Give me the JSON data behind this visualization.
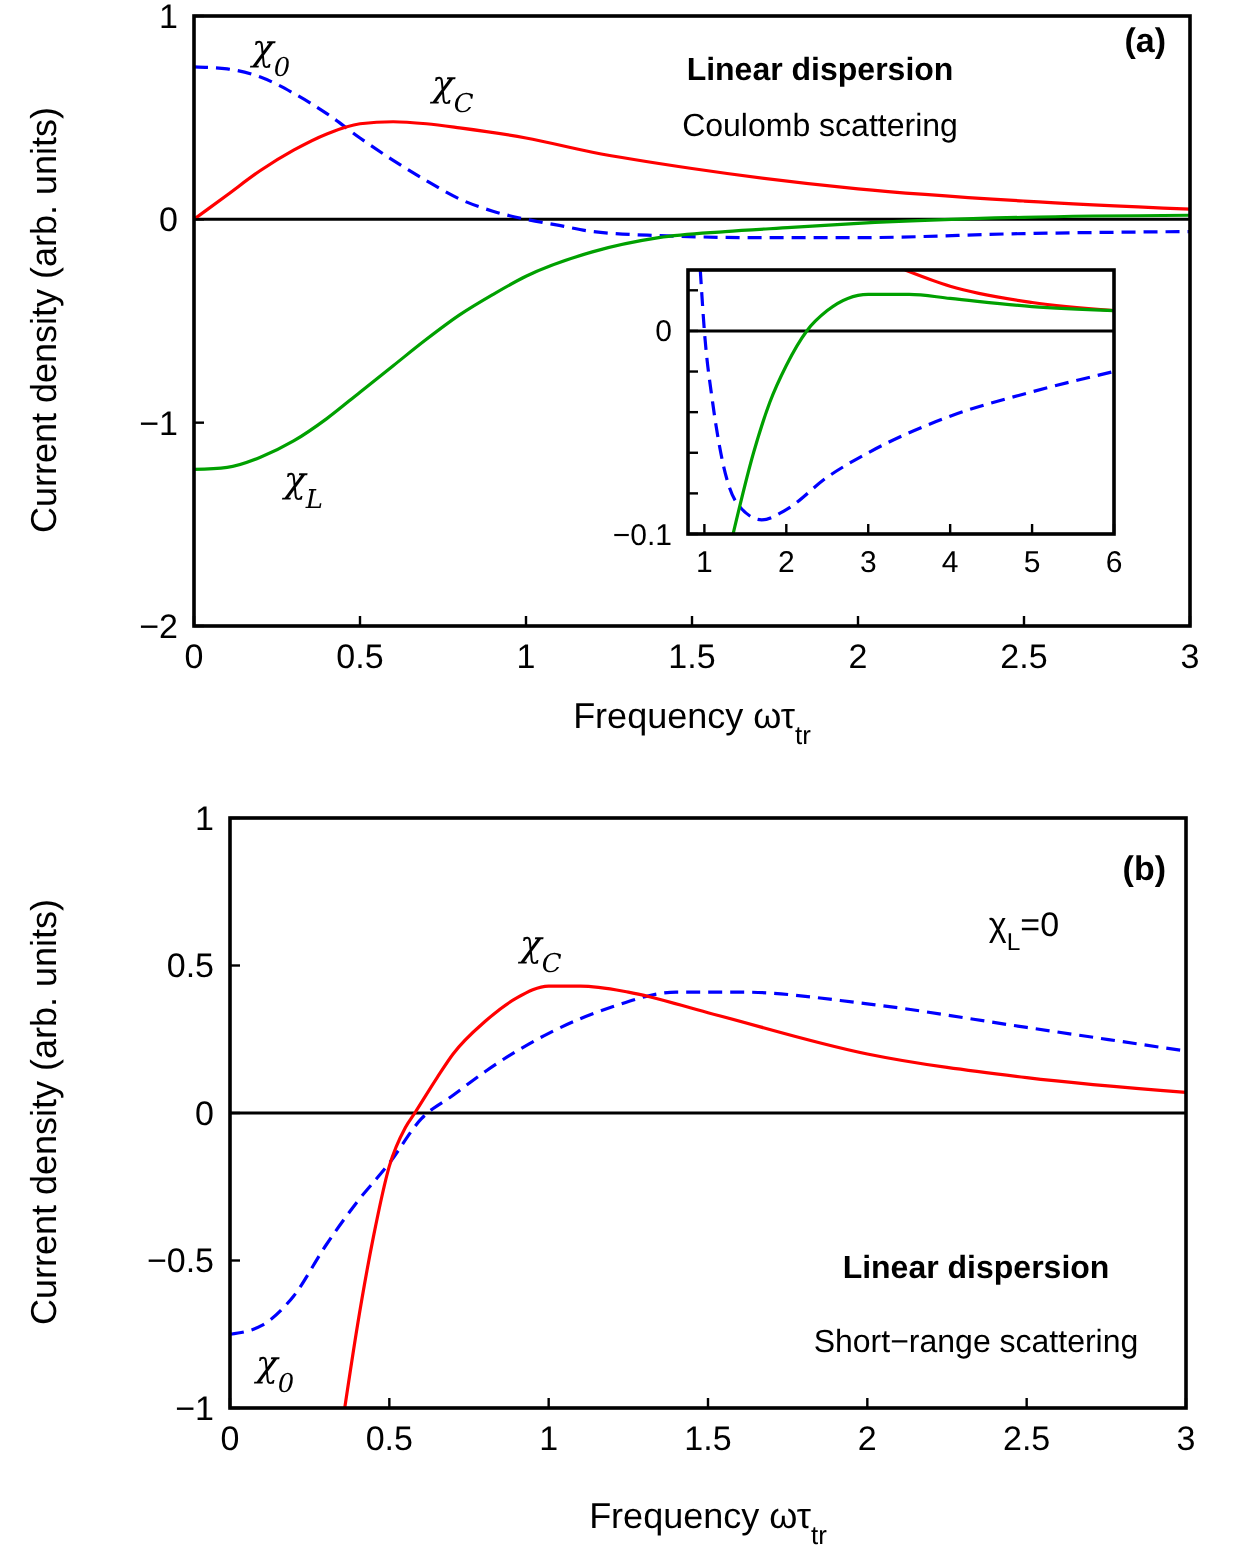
{
  "chart_data": [
    {
      "type": "line",
      "xlabel": "Frequency ωτ$_{tr}$",
      "ylabel": "Current density (arb. units)",
      "annotations": [
        "(a)",
        "Linear dispersion",
        "Coulomb scattering"
      ],
      "xlim": [
        0,
        3
      ],
      "ylim": [
        -2,
        1
      ],
      "xticks": [
        0,
        0.5,
        1,
        1.5,
        2,
        2.5,
        3
      ],
      "yticks": [
        {
          "value": -2,
          "label": "−2"
        },
        {
          "value": -1,
          "label": "−1"
        },
        0,
        1
      ],
      "ref_lines": [
        {
          "axis": "y",
          "value": 0,
          "color": "#000000"
        }
      ],
      "series": [
        {
          "name": "χ$_{0}$",
          "color": "#0000ff",
          "line_style": "dashed",
          "x": [
            0,
            0.1,
            0.2,
            0.3,
            0.4,
            0.5,
            0.6,
            0.7,
            0.8,
            0.9,
            1.0,
            1.1,
            1.2,
            1.4,
            1.7,
            2.0,
            2.5,
            3.0
          ],
          "values": [
            0.75,
            0.74,
            0.7,
            0.62,
            0.52,
            0.4,
            0.29,
            0.19,
            0.1,
            0.04,
            0.0,
            -0.03,
            -0.06,
            -0.08,
            -0.09,
            -0.09,
            -0.07,
            -0.06
          ]
        },
        {
          "name": "χ$_{C}$",
          "color": "#ff0000",
          "x": [
            0,
            0.1,
            0.2,
            0.3,
            0.4,
            0.5,
            0.6,
            0.7,
            0.8,
            1.0,
            1.2,
            1.5,
            2.0,
            2.5,
            3.0
          ],
          "values": [
            0,
            0.12,
            0.24,
            0.34,
            0.42,
            0.47,
            0.48,
            0.47,
            0.45,
            0.4,
            0.33,
            0.25,
            0.15,
            0.09,
            0.05
          ]
        },
        {
          "name": "χ$_{L}$",
          "color": "#00a000",
          "x": [
            0,
            0.1,
            0.2,
            0.3,
            0.4,
            0.5,
            0.6,
            0.7,
            0.8,
            0.9,
            1.0,
            1.2,
            1.4,
            1.6,
            1.8,
            2.0,
            2.5,
            3.0
          ],
          "values": [
            -1.23,
            -1.22,
            -1.17,
            -1.09,
            -0.98,
            -0.85,
            -0.72,
            -0.59,
            -0.47,
            -0.37,
            -0.28,
            -0.16,
            -0.09,
            -0.06,
            -0.04,
            -0.02,
            0.01,
            0.02
          ]
        }
      ]
    },
    {
      "type": "line",
      "xlim": [
        0.8,
        6
      ],
      "ylim": [
        -0.1,
        0.03
      ],
      "xticks": [
        1,
        2,
        3,
        4,
        5,
        6
      ],
      "yticks": [
        {
          "value": -0.1,
          "label": "−0.1"
        },
        {
          "value": -0.08,
          "label": null
        },
        {
          "value": -0.06,
          "label": null
        },
        {
          "value": -0.04,
          "label": null
        },
        {
          "value": -0.02,
          "label": null
        },
        0,
        {
          "value": 0.02,
          "label": null
        }
      ],
      "ref_lines": [
        {
          "axis": "y",
          "value": 0,
          "color": "#000000"
        }
      ],
      "series": [
        {
          "color": "#0000ff",
          "line_style": "dashed",
          "x": [
            0.95,
            1.0,
            1.1,
            1.2,
            1.4,
            1.7,
            2.0,
            2.5,
            3.0,
            4.0,
            5.0,
            6.0
          ],
          "values": [
            0.03,
            0.0,
            -0.035,
            -0.06,
            -0.085,
            -0.093,
            -0.088,
            -0.072,
            -0.06,
            -0.042,
            -0.03,
            -0.02
          ]
        },
        {
          "color": "#ff0000",
          "x": [
            3.45,
            4.0,
            5.0,
            6.0
          ],
          "values": [
            0.03,
            0.022,
            0.014,
            0.01
          ]
        },
        {
          "color": "#00a000",
          "x": [
            1.35,
            1.6,
            1.8,
            2.0,
            2.25,
            2.5,
            3.0,
            3.5,
            4.0,
            5.0,
            6.0
          ],
          "values": [
            -0.1,
            -0.06,
            -0.035,
            -0.017,
            0,
            0.01,
            0.018,
            0.018,
            0.016,
            0.012,
            0.01
          ]
        }
      ]
    },
    {
      "type": "line",
      "xlabel": "Frequency ωτ$_{tr}$",
      "ylabel": "Current density (arb. units)",
      "annotations": [
        "(b)",
        "Linear dispersion",
        "Short−range scattering",
        "χ$_{L}$=0"
      ],
      "xlim": [
        0,
        3
      ],
      "ylim": [
        -1,
        1
      ],
      "xticks": [
        0,
        0.5,
        1,
        1.5,
        2,
        2.5,
        3
      ],
      "yticks": [
        {
          "value": -1,
          "label": "−1"
        },
        {
          "value": -0.5,
          "label": "−0.5"
        },
        0,
        0.5,
        1
      ],
      "ref_lines": [
        {
          "axis": "y",
          "value": 0,
          "color": "#000000"
        }
      ],
      "series": [
        {
          "name": "χ$_{0}$",
          "color": "#0000ff",
          "line_style": "dashed",
          "x": [
            0,
            0.1,
            0.2,
            0.3,
            0.4,
            0.5,
            0.6,
            0.7,
            0.8,
            1.0,
            1.2,
            1.4,
            1.6,
            2.0,
            2.5,
            3.0
          ],
          "values": [
            -0.75,
            -0.72,
            -0.62,
            -0.45,
            -0.3,
            -0.17,
            -0.02,
            0.06,
            0.14,
            0.27,
            0.36,
            0.41,
            0.41,
            0.37,
            0.29,
            0.21
          ]
        },
        {
          "name": "χ$_{C}$",
          "color": "#ff0000",
          "x": [
            0.36,
            0.4,
            0.45,
            0.5,
            0.55,
            0.58,
            0.65,
            0.7,
            0.8,
            0.9,
            1.0,
            1.1,
            1.25,
            1.5,
            2.0,
            2.5,
            3.0
          ],
          "values": [
            -1,
            -0.72,
            -0.42,
            -0.18,
            -0.05,
            0,
            0.12,
            0.2,
            0.31,
            0.39,
            0.43,
            0.43,
            0.41,
            0.34,
            0.2,
            0.12,
            0.07
          ]
        }
      ]
    }
  ]
}
